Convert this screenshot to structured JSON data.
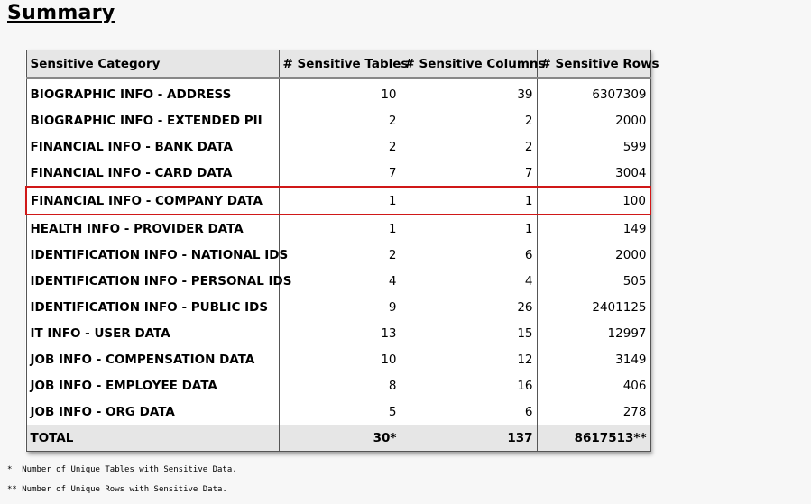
{
  "title": "Summary",
  "table": {
    "headers": [
      "Sensitive Category",
      "# Sensitive Tables",
      "# Sensitive Columns",
      "# Sensitive Rows"
    ],
    "rows": [
      {
        "category": "BIOGRAPHIC INFO - ADDRESS",
        "tables": "10",
        "columns": "39",
        "rows": "6307309"
      },
      {
        "category": "BIOGRAPHIC INFO - EXTENDED PII",
        "tables": "2",
        "columns": "2",
        "rows": "2000"
      },
      {
        "category": "FINANCIAL INFO - BANK DATA",
        "tables": "2",
        "columns": "2",
        "rows": "599"
      },
      {
        "category": "FINANCIAL INFO - CARD DATA",
        "tables": "7",
        "columns": "7",
        "rows": "3004"
      },
      {
        "category": "FINANCIAL INFO - COMPANY DATA",
        "tables": "1",
        "columns": "1",
        "rows": "100",
        "highlighted": true
      },
      {
        "category": "HEALTH INFO - PROVIDER DATA",
        "tables": "1",
        "columns": "1",
        "rows": "149"
      },
      {
        "category": "IDENTIFICATION INFO - NATIONAL IDS",
        "tables": "2",
        "columns": "6",
        "rows": "2000"
      },
      {
        "category": "IDENTIFICATION INFO - PERSONAL IDS",
        "tables": "4",
        "columns": "4",
        "rows": "505"
      },
      {
        "category": "IDENTIFICATION INFO - PUBLIC IDS",
        "tables": "9",
        "columns": "26",
        "rows": "2401125"
      },
      {
        "category": "IT INFO - USER DATA",
        "tables": "13",
        "columns": "15",
        "rows": "12997"
      },
      {
        "category": "JOB INFO - COMPENSATION DATA",
        "tables": "10",
        "columns": "12",
        "rows": "3149"
      },
      {
        "category": "JOB INFO - EMPLOYEE DATA",
        "tables": "8",
        "columns": "16",
        "rows": "406"
      },
      {
        "category": "JOB INFO - ORG DATA",
        "tables": "5",
        "columns": "6",
        "rows": "278"
      }
    ],
    "total": {
      "category": "TOTAL",
      "tables": "30*",
      "columns": "137",
      "rows": "8617513**"
    }
  },
  "notes": [
    "*  Number of Unique Tables with Sensitive Data.",
    "** Number of Unique Rows with Sensitive Data."
  ],
  "colors": {
    "highlight": "#d01818",
    "header_bg": "#e6e6e6"
  }
}
